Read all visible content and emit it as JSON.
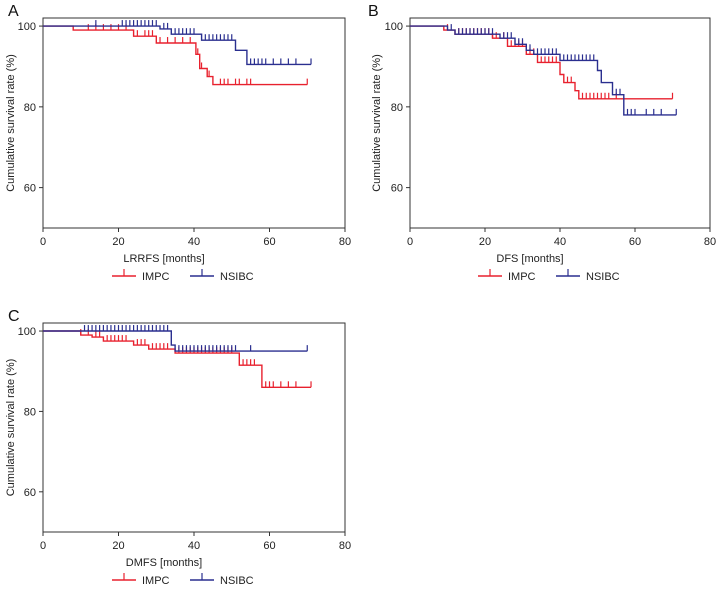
{
  "colors": {
    "IMPC": "#e8212e",
    "NSIBC": "#2a2f8f",
    "axis": "#333333"
  },
  "chart_data": [
    {
      "type": "line",
      "panel_label": "A",
      "title": "",
      "xlabel": "LRRFS [months]",
      "ylabel": "Cumulative survival rate (%)",
      "xlim": [
        0,
        80
      ],
      "ylim": [
        50,
        102
      ],
      "xticks": [
        "0",
        "20",
        "40",
        "60",
        "80"
      ],
      "yticks": [
        "60",
        "80",
        "100"
      ],
      "legend": [
        "IMPC",
        "NSIBC"
      ],
      "series": [
        {
          "name": "IMPC",
          "steps": [
            [
              0,
              100
            ],
            [
              8,
              100
            ],
            [
              8,
              99
            ],
            [
              24,
              99
            ],
            [
              24,
              97.5
            ],
            [
              30,
              97.5
            ],
            [
              30,
              95.8
            ],
            [
              40.5,
              95.8
            ],
            [
              40.5,
              93
            ],
            [
              41.5,
              93
            ],
            [
              41.5,
              89.5
            ],
            [
              43.5,
              89.5
            ],
            [
              43.5,
              87.5
            ],
            [
              45,
              87.5
            ],
            [
              45,
              85.5
            ],
            [
              70,
              85.5
            ]
          ],
          "censored": [
            12,
            14,
            16,
            18,
            20,
            22,
            25,
            27,
            28,
            29,
            31,
            33,
            35,
            37,
            39,
            41,
            42,
            44,
            47,
            48,
            49,
            51,
            52,
            54,
            55,
            70
          ]
        },
        {
          "name": "NSIBC",
          "steps": [
            [
              0,
              100
            ],
            [
              31,
              100
            ],
            [
              31,
              99.3
            ],
            [
              34,
              99.3
            ],
            [
              34,
              98
            ],
            [
              42,
              98
            ],
            [
              42,
              96.5
            ],
            [
              51,
              96.5
            ],
            [
              51,
              94
            ],
            [
              54,
              94
            ],
            [
              54,
              90.5
            ],
            [
              71,
              90.5
            ]
          ],
          "censored": [
            14,
            21,
            22,
            23,
            24,
            25,
            26,
            27,
            28,
            29,
            30,
            32,
            33,
            35,
            36,
            37,
            38,
            39,
            40,
            43,
            44,
            45,
            46,
            47,
            48,
            49,
            50,
            55,
            56,
            57,
            58,
            59,
            61,
            63,
            65,
            67,
            71
          ]
        }
      ]
    },
    {
      "type": "line",
      "panel_label": "B",
      "title": "",
      "xlabel": "DFS [months]",
      "ylabel": "Cumulative survival rate (%)",
      "xlim": [
        0,
        80
      ],
      "ylim": [
        50,
        102
      ],
      "xticks": [
        "0",
        "20",
        "40",
        "60",
        "80"
      ],
      "yticks": [
        "60",
        "80",
        "100"
      ],
      "legend": [
        "IMPC",
        "NSIBC"
      ],
      "series": [
        {
          "name": "IMPC",
          "steps": [
            [
              0,
              100
            ],
            [
              9,
              100
            ],
            [
              9,
              99
            ],
            [
              12,
              99
            ],
            [
              12,
              98
            ],
            [
              22,
              98
            ],
            [
              22,
              97
            ],
            [
              26,
              97
            ],
            [
              26,
              95
            ],
            [
              31,
              95
            ],
            [
              31,
              93
            ],
            [
              34,
              93
            ],
            [
              34,
              91
            ],
            [
              40,
              91
            ],
            [
              40,
              88
            ],
            [
              41,
              88
            ],
            [
              41,
              86
            ],
            [
              44,
              86
            ],
            [
              44,
              84
            ],
            [
              45,
              84
            ],
            [
              45,
              82
            ],
            [
              70,
              82
            ]
          ],
          "censored": [
            10,
            13,
            14,
            15,
            16,
            17,
            18,
            19,
            20,
            21,
            22,
            23,
            25,
            27,
            28,
            29,
            30,
            32,
            33,
            35,
            36,
            37,
            38,
            39,
            42,
            43,
            46,
            47,
            48,
            49,
            50,
            51,
            52,
            53,
            55,
            70
          ]
        },
        {
          "name": "NSIBC",
          "steps": [
            [
              0,
              100
            ],
            [
              10,
              100
            ],
            [
              10,
              99
            ],
            [
              12,
              99
            ],
            [
              12,
              98
            ],
            [
              24,
              98
            ],
            [
              24,
              97
            ],
            [
              28,
              97
            ],
            [
              28,
              95.5
            ],
            [
              31,
              95.5
            ],
            [
              31,
              94
            ],
            [
              33,
              94
            ],
            [
              33,
              93
            ],
            [
              40,
              93
            ],
            [
              40,
              91.5
            ],
            [
              50,
              91.5
            ],
            [
              50,
              89
            ],
            [
              51,
              89
            ],
            [
              51,
              86
            ],
            [
              54,
              86
            ],
            [
              54,
              83
            ],
            [
              57,
              83
            ],
            [
              57,
              78
            ],
            [
              71,
              78
            ]
          ],
          "censored": [
            11,
            13,
            14,
            15,
            16,
            17,
            18,
            19,
            20,
            21,
            22,
            25,
            26,
            27,
            29,
            30,
            32,
            34,
            35,
            36,
            37,
            38,
            39,
            41,
            42,
            43,
            44,
            45,
            46,
            47,
            48,
            49,
            55,
            56,
            58,
            59,
            60,
            63,
            65,
            67,
            71
          ]
        }
      ]
    },
    {
      "type": "line",
      "panel_label": "C",
      "title": "",
      "xlabel": "DMFS [months]",
      "ylabel": "Cumulative survival rate (%)",
      "xlim": [
        0,
        80
      ],
      "ylim": [
        50,
        102
      ],
      "xticks": [
        "0",
        "20",
        "40",
        "60",
        "80"
      ],
      "yticks": [
        "60",
        "80",
        "100"
      ],
      "legend": [
        "IMPC",
        "NSIBC"
      ],
      "series": [
        {
          "name": "IMPC",
          "steps": [
            [
              0,
              100
            ],
            [
              10,
              100
            ],
            [
              10,
              99
            ],
            [
              13,
              99
            ],
            [
              13,
              98.5
            ],
            [
              16,
              98.5
            ],
            [
              16,
              97.5
            ],
            [
              24,
              97.5
            ],
            [
              24,
              96.5
            ],
            [
              28,
              96.5
            ],
            [
              28,
              95.5
            ],
            [
              35,
              95.5
            ],
            [
              35,
              94.5
            ],
            [
              52,
              94.5
            ],
            [
              52,
              91.5
            ],
            [
              58,
              91.5
            ],
            [
              58,
              86
            ],
            [
              71,
              86
            ]
          ],
          "censored": [
            10,
            12,
            14,
            15,
            17,
            18,
            19,
            20,
            21,
            22,
            25,
            26,
            27,
            29,
            30,
            31,
            32,
            33,
            36,
            37,
            38,
            39,
            40,
            41,
            42,
            43,
            44,
            45,
            46,
            47,
            48,
            49,
            50,
            53,
            54,
            55,
            56,
            59,
            60,
            61,
            63,
            65,
            67,
            71
          ]
        },
        {
          "name": "NSIBC",
          "steps": [
            [
              0,
              100
            ],
            [
              34,
              100
            ],
            [
              34,
              96.5
            ],
            [
              35,
              96.5
            ],
            [
              35,
              95
            ],
            [
              70,
              95
            ]
          ],
          "censored": [
            11,
            12,
            13,
            14,
            15,
            16,
            17,
            18,
            19,
            20,
            21,
            22,
            23,
            24,
            25,
            26,
            27,
            28,
            29,
            30,
            31,
            32,
            33,
            36,
            37,
            38,
            39,
            40,
            41,
            42,
            43,
            44,
            45,
            46,
            47,
            48,
            49,
            50,
            51,
            55,
            70
          ]
        }
      ]
    }
  ]
}
